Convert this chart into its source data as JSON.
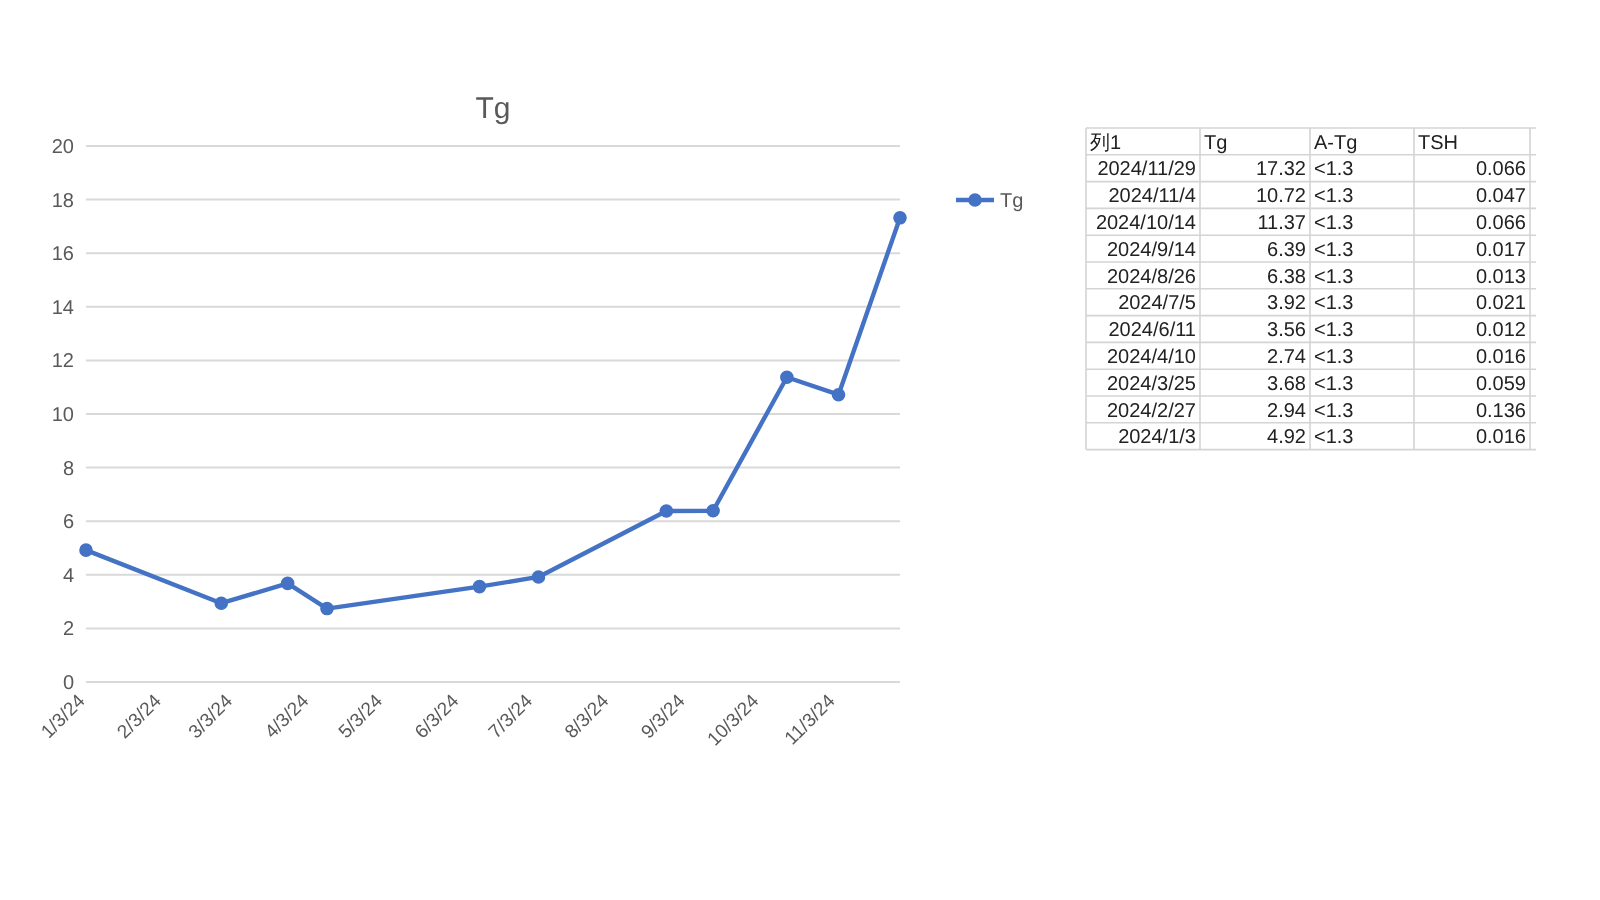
{
  "chart_data": [
    {
      "type": "line",
      "title": "Tg",
      "x": [
        "2024-01-03",
        "2024-02-27",
        "2024-03-25",
        "2024-04-10",
        "2024-06-11",
        "2024-07-05",
        "2024-08-26",
        "2024-09-14",
        "2024-10-14",
        "2024-11-04",
        "2024-11-29"
      ],
      "series": [
        {
          "name": "Tg",
          "color": "#4472c4",
          "values": [
            4.92,
            2.94,
            3.68,
            2.74,
            3.56,
            3.92,
            6.38,
            6.39,
            11.37,
            10.72,
            17.32
          ]
        }
      ],
      "xlim": [
        "2024-01-03",
        "2024-11-29"
      ],
      "xticks": [
        {
          "value": "2024-01-03",
          "label": "1/3/24"
        },
        {
          "value": "2024-02-03",
          "label": "2/3/24"
        },
        {
          "value": "2024-03-03",
          "label": "3/3/24"
        },
        {
          "value": "2024-04-03",
          "label": "4/3/24"
        },
        {
          "value": "2024-05-03",
          "label": "5/3/24"
        },
        {
          "value": "2024-06-03",
          "label": "6/3/24"
        },
        {
          "value": "2024-07-03",
          "label": "7/3/24"
        },
        {
          "value": "2024-08-03",
          "label": "8/3/24"
        },
        {
          "value": "2024-09-03",
          "label": "9/3/24"
        },
        {
          "value": "2024-10-03",
          "label": "10/3/24"
        },
        {
          "value": "2024-11-03",
          "label": "11/3/24"
        }
      ],
      "ylim": [
        0,
        20
      ],
      "yticks": [
        0,
        2,
        4,
        6,
        8,
        10,
        12,
        14,
        16,
        18,
        20
      ],
      "grid": "y",
      "legend": "top right",
      "marker": "circle",
      "line_style": "solid"
    },
    {
      "type": "other",
      "xlabel": "列1",
      "categories": [
        "2024/11/29",
        "2024/11/4",
        "2024/10/14",
        "2024/9/14",
        "2024/8/26",
        "2024/7/5",
        "2024/6/11",
        "2024/4/10",
        "2024/3/25",
        "2024/2/27",
        "2024/1/3"
      ],
      "series": [
        {
          "name": "Tg",
          "values": [
            17.32,
            10.72,
            11.37,
            6.39,
            6.38,
            3.92,
            3.56,
            2.74,
            3.68,
            2.94,
            4.92
          ]
        },
        {
          "name": "A-Tg",
          "values": [
            null,
            null,
            null,
            null,
            null,
            null,
            null,
            null,
            null,
            null,
            null
          ],
          "value_labels": [
            "<1.3",
            "<1.3",
            "<1.3",
            "<1.3",
            "<1.3",
            "<1.3",
            "<1.3",
            "<1.3",
            "<1.3",
            "<1.3",
            "<1.3"
          ]
        },
        {
          "name": "TSH",
          "values": [
            0.066,
            0.047,
            0.066,
            0.017,
            0.013,
            0.021,
            0.012,
            0.016,
            0.059,
            0.136,
            0.016
          ]
        }
      ],
      "data_labels": true
    }
  ]
}
